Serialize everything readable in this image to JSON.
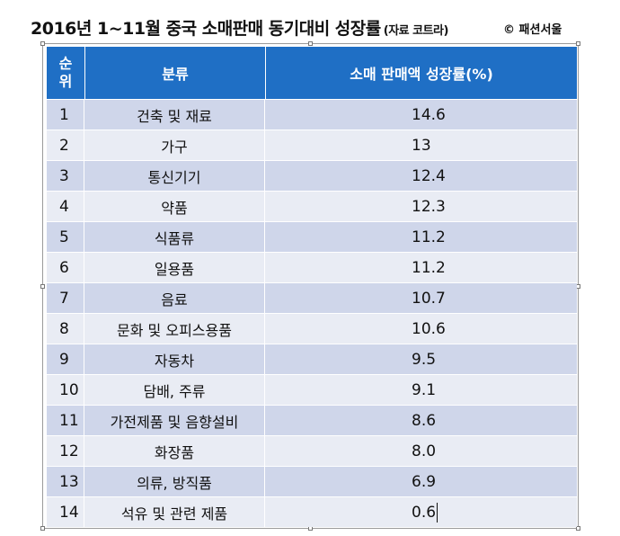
{
  "title": {
    "main": "2016년 1~11월 중국 소매판매 동기대비 성장률",
    "source": "(자료 코트라)",
    "credit": "© 패션서울"
  },
  "table": {
    "headers": {
      "rank_line1": "순",
      "rank_line2": "위",
      "category": "분류",
      "growth": "소매 판매액 성장률(%)"
    },
    "rows": [
      {
        "rank": "1",
        "category": "건축 및 재료",
        "growth": "14.6"
      },
      {
        "rank": "2",
        "category": "가구",
        "growth": "13"
      },
      {
        "rank": "3",
        "category": "통신기기",
        "growth": "12.4"
      },
      {
        "rank": "4",
        "category": "약품",
        "growth": "12.3"
      },
      {
        "rank": "5",
        "category": "식품류",
        "growth": "11.2"
      },
      {
        "rank": "6",
        "category": "일용품",
        "growth": "11.2"
      },
      {
        "rank": "7",
        "category": "음료",
        "growth": "10.7"
      },
      {
        "rank": "8",
        "category": "문화 및 오피스용품",
        "growth": "10.6"
      },
      {
        "rank": "9",
        "category": "자동차",
        "growth": "9.5"
      },
      {
        "rank": "10",
        "category": "담배, 주류",
        "growth": "9.1"
      },
      {
        "rank": "11",
        "category": "가전제품 및 음향설비",
        "growth": "8.6"
      },
      {
        "rank": "12",
        "category": "화장품",
        "growth": "8.0"
      },
      {
        "rank": "13",
        "category": "의류, 방직품",
        "growth": "6.9"
      },
      {
        "rank": "14",
        "category": "석유 및 관련 제품",
        "growth": "0.6"
      }
    ]
  },
  "colors": {
    "header_bg": "#1f6fc5",
    "row_odd": "#cfd6ea",
    "row_even": "#e9ecf4"
  }
}
